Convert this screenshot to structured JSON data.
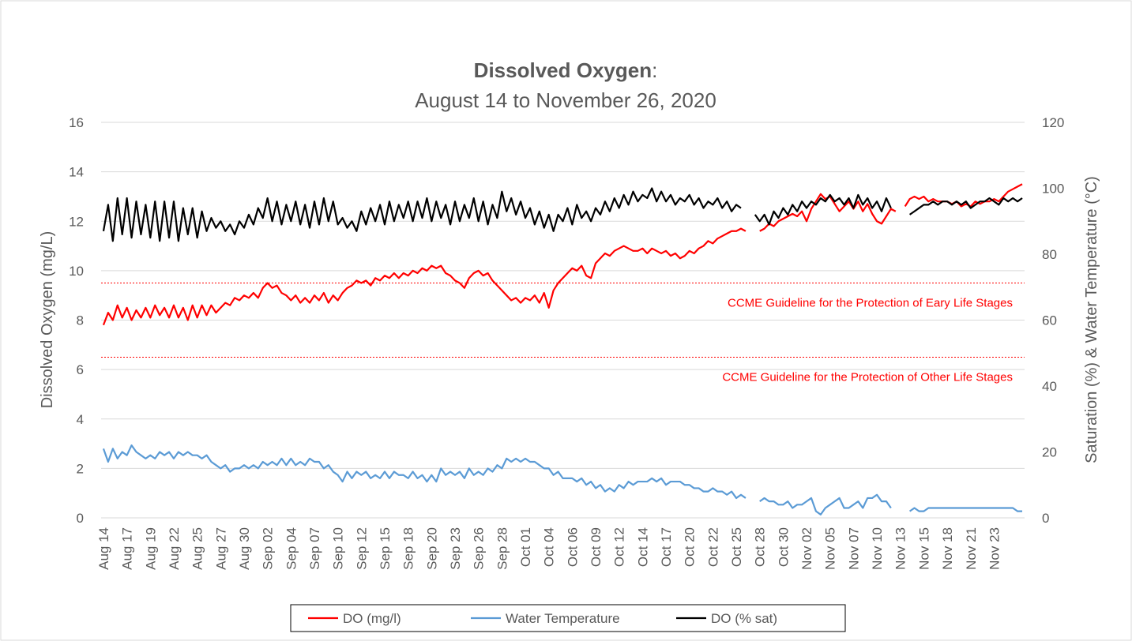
{
  "chart_data": {
    "type": "line",
    "title": "Dissolved Oxygen",
    "title_separator": ":",
    "subtitle": "August 14 to November 26, 2020",
    "y_label": "Dissolved Oxygen (mg/L)",
    "y2_label": "Saturation (%) & Water Temperature (°C)",
    "ylim": [
      0,
      16
    ],
    "yticks": [
      0,
      2,
      4,
      6,
      8,
      10,
      12,
      14,
      16
    ],
    "y2lim": [
      0,
      120
    ],
    "y2ticks": [
      0,
      20,
      40,
      60,
      80,
      100,
      120
    ],
    "grid": true,
    "legend": "bottom",
    "guidelines": [
      {
        "value": 9.5,
        "label": "CCME Guideline for the Protection of Eary Life Stages",
        "color": "#ff0000"
      },
      {
        "value": 6.5,
        "label": "CCME Guideline for the Protection of Other Life Stages",
        "color": "#ff0000"
      }
    ],
    "categories": [
      "Aug 14",
      null,
      null,
      null,
      null,
      "Aug 17",
      null,
      null,
      null,
      null,
      "Aug 19",
      null,
      null,
      null,
      null,
      "Aug 22",
      null,
      null,
      null,
      null,
      "Aug 25",
      null,
      null,
      null,
      null,
      "Aug 27",
      null,
      null,
      null,
      null,
      "Aug 30",
      null,
      null,
      null,
      null,
      "Sep 02",
      null,
      null,
      null,
      null,
      "Sep 04",
      null,
      null,
      null,
      null,
      "Sep 07",
      null,
      null,
      null,
      null,
      "Sep 10",
      null,
      null,
      null,
      null,
      "Sep 12",
      null,
      null,
      null,
      null,
      "Sep 15",
      null,
      null,
      null,
      null,
      "Sep 18",
      null,
      null,
      null,
      null,
      "Sep 20",
      null,
      null,
      null,
      null,
      "Sep 23",
      null,
      null,
      null,
      null,
      "Sep 26",
      null,
      null,
      null,
      null,
      "Sep 28",
      null,
      null,
      null,
      null,
      "Oct 01",
      null,
      null,
      null,
      null,
      "Oct 04",
      null,
      null,
      null,
      null,
      "Oct 06",
      null,
      null,
      null,
      null,
      "Oct 09",
      null,
      null,
      null,
      null,
      "Oct 12",
      null,
      null,
      null,
      null,
      "Oct 14",
      null,
      null,
      null,
      null,
      "Oct 17",
      null,
      null,
      null,
      null,
      "Oct 20",
      null,
      null,
      null,
      null,
      "Oct 22",
      null,
      null,
      null,
      null,
      "Oct 25",
      null,
      null,
      null,
      null,
      "Oct 28",
      null,
      null,
      null,
      null,
      "Oct 30",
      null,
      null,
      null,
      null,
      "Nov 02",
      null,
      null,
      null,
      null,
      "Nov 05",
      null,
      null,
      null,
      null,
      "Nov 07",
      null,
      null,
      null,
      null,
      "Nov 10",
      null,
      null,
      null,
      null,
      "Nov 13",
      null,
      null,
      null,
      null,
      "Nov 15",
      null,
      null,
      null,
      null,
      "Nov 18",
      null,
      null,
      null,
      null,
      "Nov 21",
      null,
      null,
      null,
      null,
      "Nov 23",
      null,
      null,
      null,
      null,
      null,
      null
    ],
    "series": [
      {
        "name": "DO (mg/l)",
        "color": "#ff0000",
        "axis": "y",
        "values": [
          7.8,
          8.3,
          8.0,
          8.6,
          8.1,
          8.5,
          8.0,
          8.4,
          8.1,
          8.5,
          8.1,
          8.6,
          8.2,
          8.5,
          8.1,
          8.6,
          8.1,
          8.5,
          8.0,
          8.6,
          8.1,
          8.6,
          8.2,
          8.6,
          8.3,
          8.5,
          8.7,
          8.6,
          8.9,
          8.8,
          9.0,
          8.9,
          9.1,
          8.9,
          9.3,
          9.5,
          9.3,
          9.4,
          9.1,
          9.0,
          8.8,
          9.0,
          8.7,
          8.9,
          8.7,
          9.0,
          8.8,
          9.1,
          8.7,
          9.0,
          8.8,
          9.1,
          9.3,
          9.4,
          9.6,
          9.5,
          9.6,
          9.4,
          9.7,
          9.6,
          9.8,
          9.7,
          9.9,
          9.7,
          9.9,
          9.8,
          10.0,
          9.9,
          10.1,
          10.0,
          10.2,
          10.1,
          10.2,
          9.9,
          9.8,
          9.6,
          9.5,
          9.3,
          9.7,
          9.9,
          10.0,
          9.8,
          9.9,
          9.6,
          9.4,
          9.2,
          9.0,
          8.8,
          8.9,
          8.7,
          8.9,
          8.8,
          9.0,
          8.7,
          9.1,
          8.5,
          9.2,
          9.5,
          9.7,
          9.9,
          10.1,
          10.0,
          10.2,
          9.8,
          9.7,
          10.3,
          10.5,
          10.7,
          10.6,
          10.8,
          10.9,
          11.0,
          10.9,
          10.8,
          10.8,
          10.9,
          10.7,
          10.9,
          10.8,
          10.7,
          10.8,
          10.6,
          10.7,
          10.5,
          10.6,
          10.8,
          10.7,
          10.9,
          11.0,
          11.2,
          11.1,
          11.3,
          11.4,
          11.5,
          11.6,
          11.6,
          11.7,
          11.6,
          null,
          null,
          11.6,
          11.7,
          11.9,
          11.8,
          12.0,
          12.1,
          12.2,
          12.3,
          12.2,
          12.4,
          12.0,
          12.5,
          12.8,
          13.1,
          12.9,
          13.0,
          12.7,
          12.4,
          12.6,
          12.8,
          12.5,
          12.8,
          12.4,
          12.7,
          12.3,
          12.0,
          11.9,
          12.2,
          12.5,
          12.4,
          null,
          12.6,
          12.9,
          13.0,
          12.9,
          13.0,
          12.8,
          12.9,
          12.8,
          12.8,
          12.8,
          12.7,
          12.8,
          12.6,
          12.7,
          12.6,
          12.8,
          12.7,
          12.8,
          12.8,
          12.9,
          12.8,
          13.0,
          13.2,
          13.3,
          13.4,
          13.5
        ]
      },
      {
        "name": "Water Temperature",
        "color": "#5b9bd5",
        "axis": "y2",
        "values": [
          21,
          17,
          21,
          18,
          20,
          19,
          22,
          20,
          19,
          18,
          19,
          18,
          20,
          19,
          20,
          18,
          20,
          19,
          20,
          19,
          19,
          18,
          19,
          17,
          16,
          15,
          16,
          14,
          15,
          15,
          16,
          15,
          16,
          15,
          17,
          16,
          17,
          16,
          18,
          16,
          18,
          16,
          17,
          16,
          18,
          17,
          17,
          15,
          16,
          14,
          13,
          11,
          14,
          12,
          14,
          13,
          14,
          12,
          13,
          12,
          14,
          12,
          14,
          13,
          13,
          12,
          14,
          12,
          13,
          11,
          13,
          11,
          15,
          13,
          14,
          13,
          14,
          12,
          15,
          13,
          14,
          13,
          15,
          14,
          16,
          15,
          18,
          17,
          18,
          17,
          18,
          17,
          17,
          16,
          15,
          15,
          13,
          14,
          12,
          12,
          12,
          11,
          12,
          10,
          11,
          9,
          10,
          8,
          9,
          8,
          10,
          9,
          11,
          10,
          11,
          11,
          11,
          12,
          11,
          12,
          10,
          11,
          11,
          11,
          10,
          10,
          9,
          9,
          8,
          8,
          9,
          8,
          8,
          7,
          8,
          6,
          7,
          6,
          null,
          null,
          5,
          6,
          5,
          5,
          4,
          4,
          5,
          3,
          4,
          4,
          5,
          6,
          2,
          1,
          3,
          4,
          5,
          6,
          3,
          3,
          4,
          5,
          3,
          6,
          6,
          7,
          5,
          5,
          3,
          null,
          null,
          null,
          2,
          3,
          2,
          2,
          3,
          3,
          3,
          3,
          3,
          3,
          3,
          3,
          3,
          3,
          3,
          3,
          3,
          3,
          3,
          3,
          3,
          3,
          3,
          2,
          2
        ]
      },
      {
        "name": "DO (% sat)",
        "color": "#000000",
        "axis": "y2",
        "values": [
          87,
          95,
          84,
          97,
          86,
          97,
          85,
          96,
          86,
          95,
          85,
          96,
          84,
          96,
          85,
          96,
          84,
          94,
          86,
          94,
          85,
          93,
          87,
          91,
          88,
          90,
          87,
          89,
          86,
          90,
          88,
          92,
          89,
          94,
          91,
          97,
          90,
          96,
          89,
          95,
          90,
          96,
          89,
          95,
          88,
          96,
          89,
          97,
          90,
          96,
          89,
          91,
          88,
          90,
          87,
          93,
          89,
          94,
          90,
          95,
          89,
          96,
          90,
          95,
          91,
          96,
          90,
          96,
          91,
          97,
          90,
          96,
          91,
          95,
          89,
          96,
          90,
          95,
          91,
          97,
          90,
          96,
          89,
          95,
          91,
          99,
          93,
          97,
          92,
          96,
          91,
          94,
          89,
          93,
          88,
          92,
          87,
          92,
          90,
          94,
          89,
          95,
          91,
          93,
          90,
          94,
          92,
          96,
          93,
          97,
          94,
          98,
          95,
          99,
          96,
          98,
          97,
          100,
          96,
          99,
          96,
          98,
          95,
          97,
          96,
          98,
          95,
          97,
          94,
          96,
          95,
          97,
          94,
          96,
          93,
          95,
          94,
          null,
          null,
          92,
          90,
          92,
          89,
          93,
          91,
          94,
          92,
          95,
          93,
          96,
          94,
          96,
          95,
          97,
          96,
          98,
          96,
          97,
          95,
          97,
          94,
          98,
          95,
          97,
          94,
          96,
          93,
          97,
          94,
          null,
          null,
          null,
          92,
          93,
          94,
          95,
          95,
          96,
          95,
          96,
          96,
          95,
          96,
          95,
          96,
          94,
          95,
          96,
          96,
          97,
          96,
          95,
          97,
          96,
          97,
          96,
          97
        ]
      }
    ]
  }
}
